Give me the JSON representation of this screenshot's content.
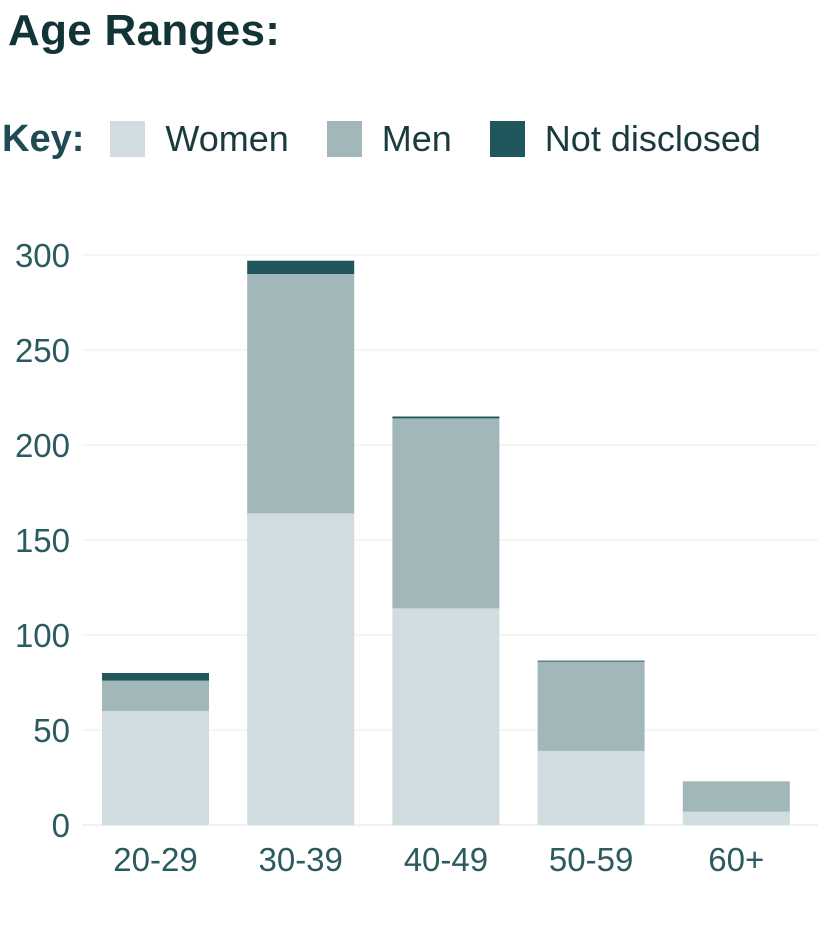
{
  "title": "Age Ranges:",
  "legend": {
    "key_label": "Key:",
    "items": [
      {
        "label": "Women",
        "color": "#d0dcdf"
      },
      {
        "label": "Men",
        "color": "#a2b7ba"
      },
      {
        "label": "Not disclosed",
        "color": "#1f575c"
      }
    ]
  },
  "chart_data": {
    "type": "bar",
    "stacked": true,
    "categories": [
      "20-29",
      "30-39",
      "40-49",
      "50-59",
      "60+"
    ],
    "series": [
      {
        "name": "Women",
        "values": [
          60,
          164,
          114,
          39,
          7
        ],
        "color": "#d0dcdf"
      },
      {
        "name": "Men",
        "values": [
          16,
          126,
          100,
          47,
          16
        ],
        "color": "#a2b7ba"
      },
      {
        "name": "Not disclosed",
        "values": [
          4,
          7,
          1,
          0.5,
          0
        ],
        "color": "#1f575c"
      }
    ],
    "yticks": [
      0,
      50,
      100,
      150,
      200,
      250,
      300
    ],
    "ylim": [
      0,
      300
    ],
    "grid": true
  }
}
